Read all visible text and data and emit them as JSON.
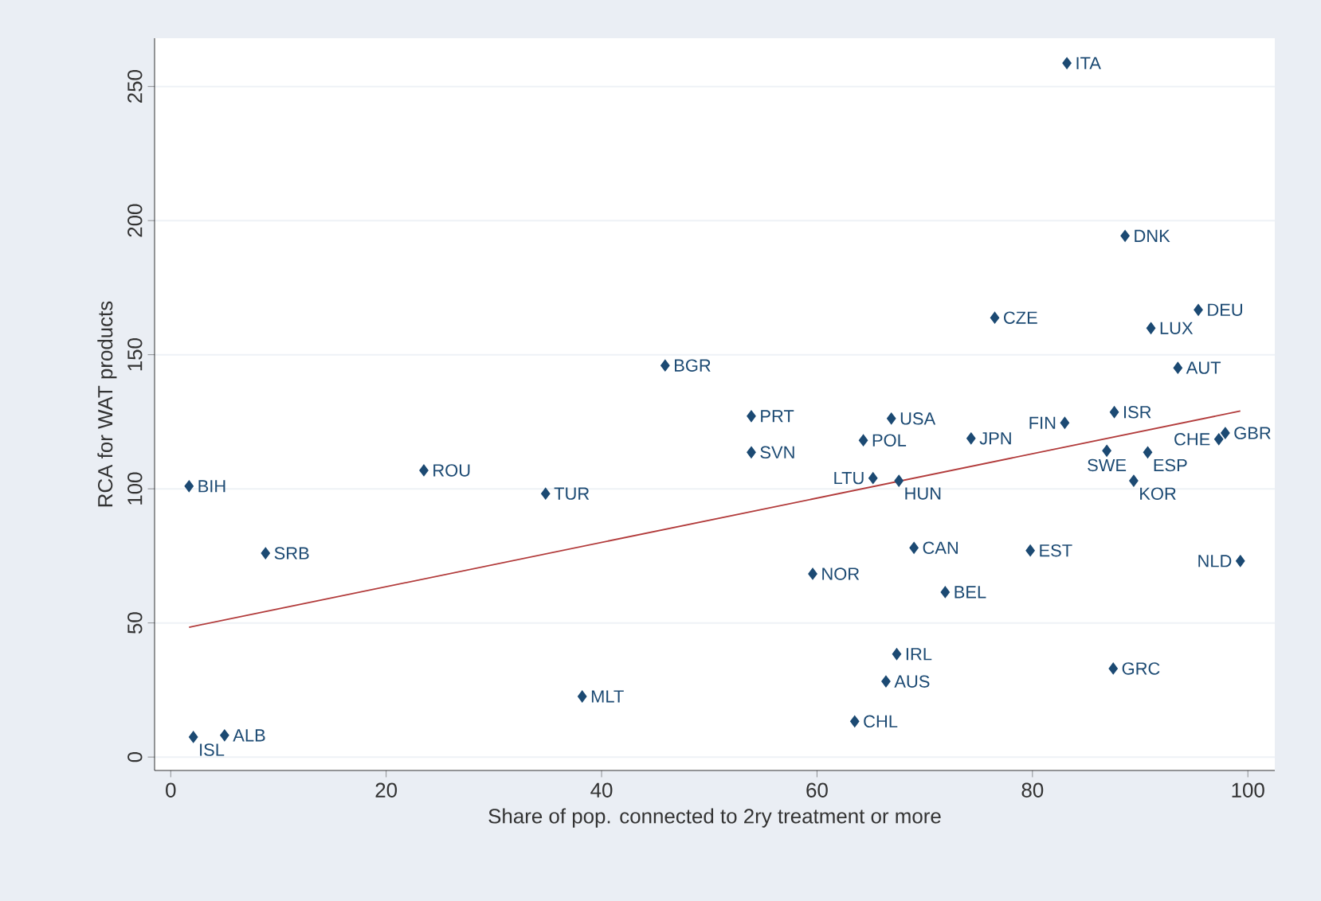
{
  "chart_data": {
    "type": "scatter",
    "xlabel": "Share of pop. connected to 2ry treatment or more",
    "ylabel": "RCA for WAT products",
    "xlim": [
      -1.5,
      102.5
    ],
    "ylim": [
      -5,
      268
    ],
    "xticks": [
      0,
      20,
      40,
      60,
      80,
      100
    ],
    "yticks": [
      0,
      50,
      100,
      150,
      200,
      250
    ],
    "grid": "y",
    "series": [
      {
        "type": "scatter",
        "color": "#1c4a73",
        "marker": "diamond",
        "x": [
          83.2,
          88.6,
          95.4,
          76.5,
          91.0,
          45.9,
          93.5,
          87.6,
          53.9,
          66.9,
          83.0,
          97.9,
          97.3,
          64.3,
          74.3,
          86.9,
          90.7,
          53.9,
          23.5,
          1.7,
          65.2,
          67.6,
          89.4,
          34.8,
          69.0,
          79.8,
          8.8,
          99.3,
          59.6,
          71.9,
          67.4,
          66.4,
          87.5,
          38.2,
          63.5,
          2.1,
          5.0
        ],
        "values": [
          258.7,
          194.3,
          166.7,
          163.8,
          159.9,
          146,
          145.1,
          128.6,
          127.1,
          126.2,
          124.6,
          120.8,
          118.5,
          118.1,
          118.8,
          114.2,
          113.6,
          113.6,
          106.9,
          101,
          104,
          103,
          103,
          98.2,
          78,
          77,
          76,
          73.1,
          68.3,
          61.5,
          38.4,
          28.2,
          33,
          22.6,
          13.3,
          7.5,
          8.1
        ],
        "value_labels": [
          "ITA",
          "DNK",
          "DEU",
          "CZE",
          "LUX",
          "BGR",
          "AUT",
          "ISR",
          "PRT",
          "USA",
          "FIN",
          "GBR",
          "CHE",
          "POL",
          "JPN",
          "SWE",
          "ESP",
          "SVN",
          "ROU",
          "BIH",
          "LTU",
          "HUN",
          "KOR",
          "TUR",
          "CAN",
          "EST",
          "SRB",
          "NLD",
          "NOR",
          "BEL",
          "IRL",
          "AUS",
          "GRC",
          "MLT",
          "CHL",
          "ISL",
          "ALB"
        ]
      },
      {
        "type": "line",
        "color": "#b23b3b",
        "marker": "none",
        "x": [
          1.7,
          99.3
        ],
        "values": [
          48.4,
          129
        ]
      }
    ]
  }
}
